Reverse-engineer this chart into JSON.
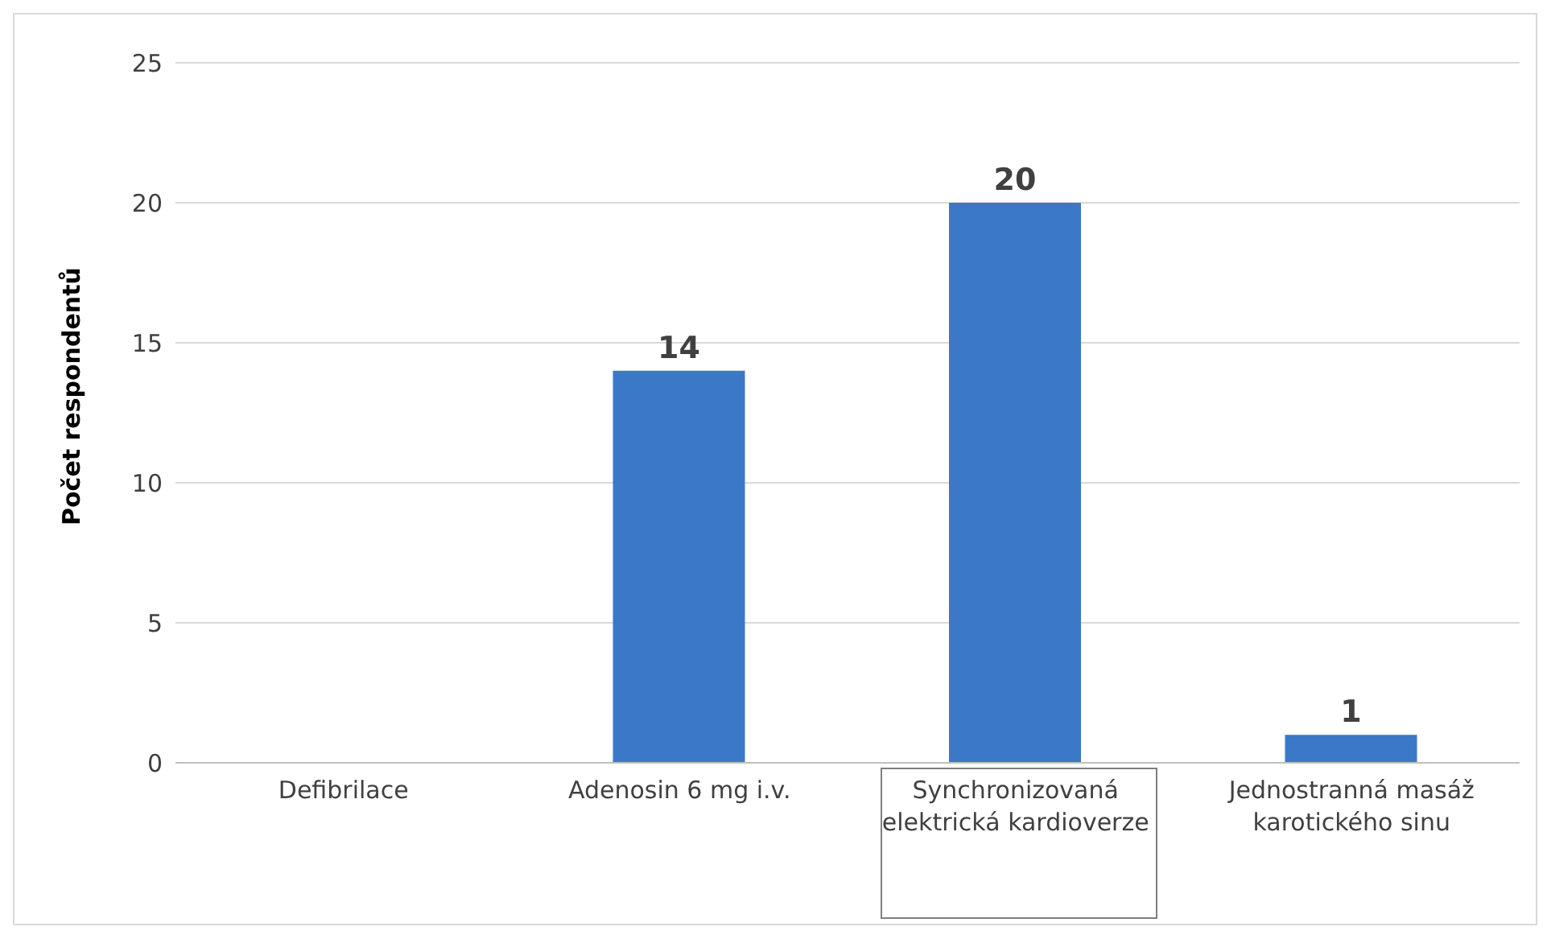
{
  "chart_data": {
    "type": "bar",
    "ylabel": "Počet respondentů",
    "categories": [
      "Defibrilace",
      "Adenosin 6 mg i.v.",
      "Synchronizovaná elektrická kardioverze",
      "Jednostranná masáž karotického sinu"
    ],
    "values": [
      0,
      14,
      20,
      1
    ],
    "color": "#3b78c8",
    "value_labels": [
      null,
      "14",
      "20",
      "1"
    ],
    "ylim": [
      0,
      25
    ],
    "yticks": [
      0,
      5,
      10,
      15,
      20,
      25
    ],
    "grid": "y"
  }
}
